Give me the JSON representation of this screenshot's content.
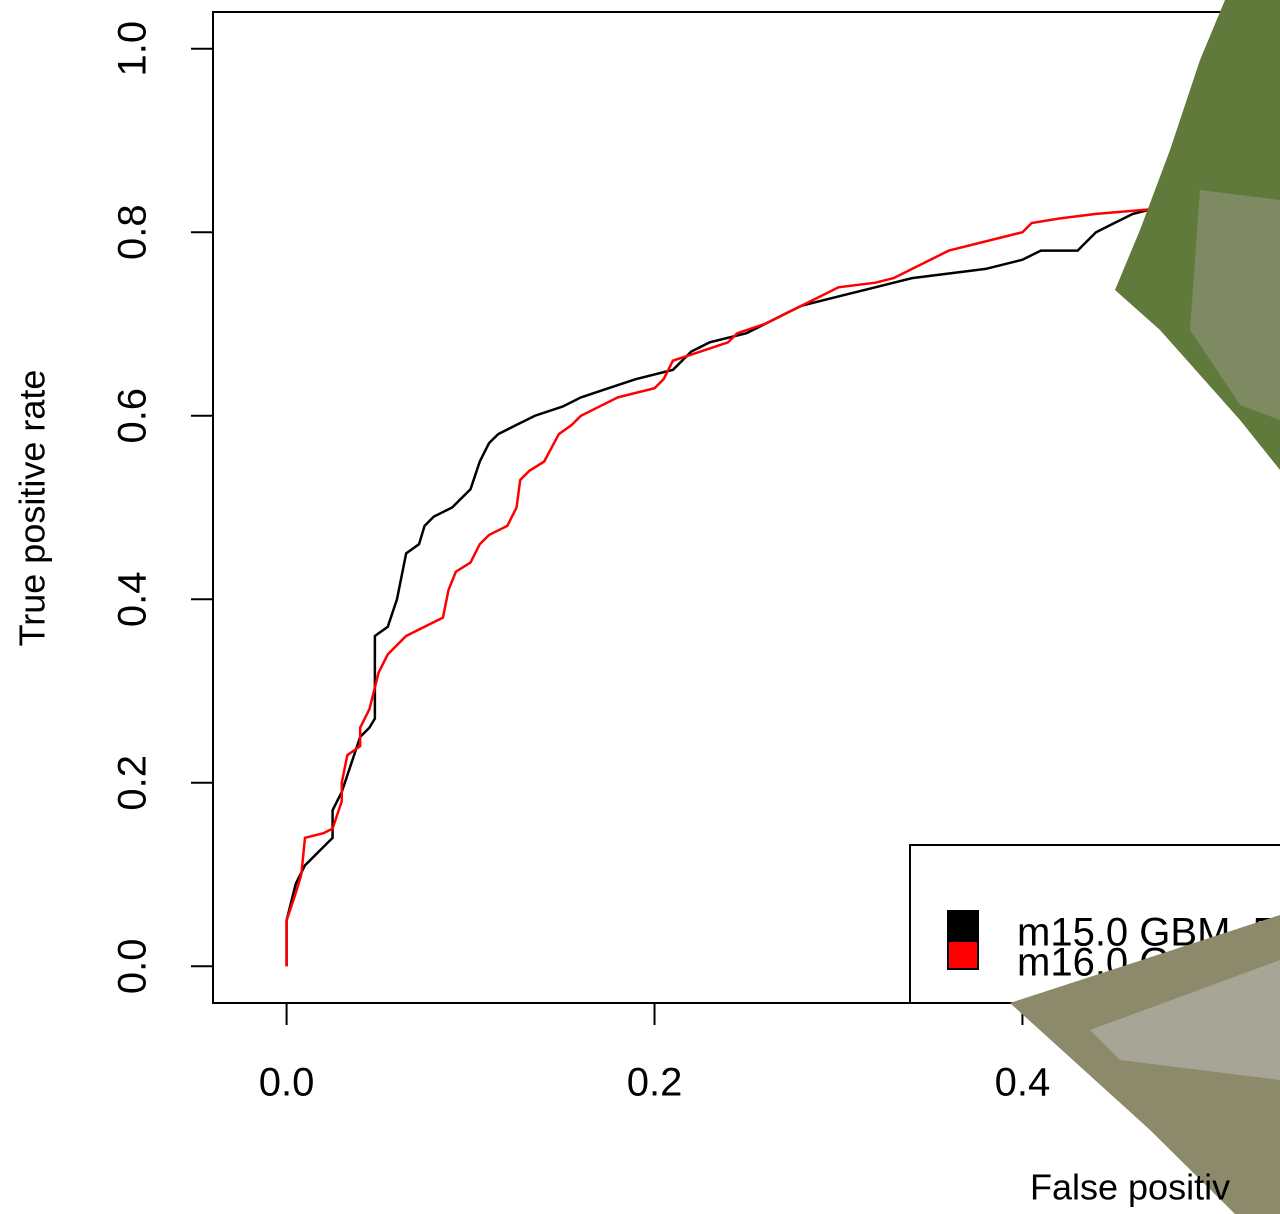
{
  "chart_data": {
    "type": "line",
    "xlabel": "False positiv",
    "ylabel": "True positive rate",
    "xlim": [
      -0.04,
      0.54
    ],
    "ylim": [
      -0.04,
      1.04
    ],
    "xticks": [
      {
        "value": 0,
        "label": "0.0"
      },
      0.2,
      0.4
    ],
    "yticks": [
      {
        "value": 0,
        "label": "0.0"
      },
      0.2,
      0.4,
      0.6,
      0.8,
      {
        "value": 1,
        "label": "1.0"
      }
    ],
    "legend": "bottom-right",
    "series": [
      {
        "name": "m15.0 GBM, 5",
        "color": "#000000",
        "x": [
          0,
          0,
          0.005,
          0.01,
          0.015,
          0.02,
          0.025,
          0.025,
          0.03,
          0.035,
          0.04,
          0.045,
          0.048,
          0.048,
          0.055,
          0.06,
          0.065,
          0.072,
          0.075,
          0.08,
          0.09,
          0.1,
          0.105,
          0.11,
          0.115,
          0.125,
          0.135,
          0.15,
          0.16,
          0.175,
          0.19,
          0.21,
          0.22,
          0.23,
          0.25,
          0.26,
          0.27,
          0.28,
          0.3,
          0.32,
          0.34,
          0.36,
          0.38,
          0.4,
          0.41,
          0.43,
          0.435,
          0.44,
          0.45,
          0.46,
          0.47,
          0.49
        ],
        "values": [
          0,
          0.05,
          0.09,
          0.11,
          0.12,
          0.13,
          0.14,
          0.17,
          0.19,
          0.22,
          0.25,
          0.26,
          0.27,
          0.36,
          0.37,
          0.4,
          0.45,
          0.46,
          0.48,
          0.49,
          0.5,
          0.52,
          0.55,
          0.57,
          0.58,
          0.59,
          0.6,
          0.61,
          0.62,
          0.63,
          0.64,
          0.65,
          0.67,
          0.68,
          0.69,
          0.7,
          0.71,
          0.72,
          0.73,
          0.74,
          0.75,
          0.755,
          0.76,
          0.77,
          0.78,
          0.78,
          0.79,
          0.8,
          0.81,
          0.82,
          0.825,
          0.83
        ]
      },
      {
        "name": "m16.0 G",
        "color": "#ff0000",
        "x": [
          0,
          0,
          0.005,
          0.008,
          0.01,
          0.02,
          0.025,
          0.03,
          0.03,
          0.033,
          0.04,
          0.04,
          0.045,
          0.05,
          0.055,
          0.06,
          0.065,
          0.075,
          0.085,
          0.088,
          0.092,
          0.1,
          0.105,
          0.11,
          0.12,
          0.125,
          0.127,
          0.132,
          0.14,
          0.148,
          0.155,
          0.16,
          0.17,
          0.18,
          0.2,
          0.205,
          0.21,
          0.225,
          0.24,
          0.245,
          0.26,
          0.27,
          0.28,
          0.29,
          0.3,
          0.32,
          0.33,
          0.34,
          0.35,
          0.36,
          0.38,
          0.4,
          0.405,
          0.42,
          0.44,
          0.47,
          0.49
        ],
        "values": [
          0,
          0.05,
          0.08,
          0.1,
          0.14,
          0.145,
          0.15,
          0.18,
          0.2,
          0.23,
          0.24,
          0.26,
          0.28,
          0.32,
          0.34,
          0.35,
          0.36,
          0.37,
          0.38,
          0.41,
          0.43,
          0.44,
          0.46,
          0.47,
          0.48,
          0.5,
          0.53,
          0.54,
          0.55,
          0.58,
          0.59,
          0.6,
          0.61,
          0.62,
          0.63,
          0.64,
          0.66,
          0.67,
          0.68,
          0.69,
          0.7,
          0.71,
          0.72,
          0.73,
          0.74,
          0.745,
          0.75,
          0.76,
          0.77,
          0.78,
          0.79,
          0.8,
          0.81,
          0.815,
          0.82,
          0.825,
          0.83
        ]
      }
    ]
  }
}
